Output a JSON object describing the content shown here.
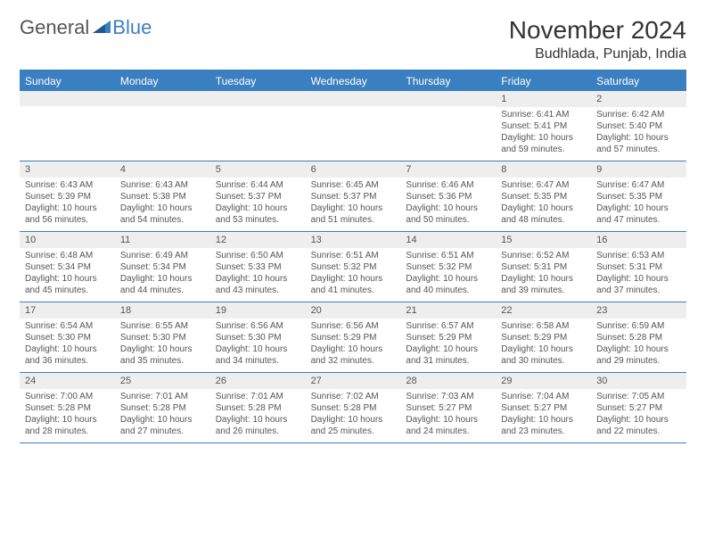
{
  "logo": {
    "general": "General",
    "blue": "Blue"
  },
  "title": "November 2024",
  "location": "Budhlada, Punjab, India",
  "colors": {
    "accent": "#3a7fbf",
    "header_text": "#ffffff",
    "daynum_bg": "#eeeeee",
    "text": "#555555",
    "background": "#ffffff"
  },
  "fonts": {
    "title_size": 28,
    "location_size": 16,
    "dow_size": 12,
    "daynum_size": 11,
    "body_size": 10
  },
  "days_of_week": [
    "Sunday",
    "Monday",
    "Tuesday",
    "Wednesday",
    "Thursday",
    "Friday",
    "Saturday"
  ],
  "weeks": [
    [
      {
        "n": "",
        "sunrise": "",
        "sunset": "",
        "daylight": ""
      },
      {
        "n": "",
        "sunrise": "",
        "sunset": "",
        "daylight": ""
      },
      {
        "n": "",
        "sunrise": "",
        "sunset": "",
        "daylight": ""
      },
      {
        "n": "",
        "sunrise": "",
        "sunset": "",
        "daylight": ""
      },
      {
        "n": "",
        "sunrise": "",
        "sunset": "",
        "daylight": ""
      },
      {
        "n": "1",
        "sunrise": "Sunrise: 6:41 AM",
        "sunset": "Sunset: 5:41 PM",
        "daylight": "Daylight: 10 hours and 59 minutes."
      },
      {
        "n": "2",
        "sunrise": "Sunrise: 6:42 AM",
        "sunset": "Sunset: 5:40 PM",
        "daylight": "Daylight: 10 hours and 57 minutes."
      }
    ],
    [
      {
        "n": "3",
        "sunrise": "Sunrise: 6:43 AM",
        "sunset": "Sunset: 5:39 PM",
        "daylight": "Daylight: 10 hours and 56 minutes."
      },
      {
        "n": "4",
        "sunrise": "Sunrise: 6:43 AM",
        "sunset": "Sunset: 5:38 PM",
        "daylight": "Daylight: 10 hours and 54 minutes."
      },
      {
        "n": "5",
        "sunrise": "Sunrise: 6:44 AM",
        "sunset": "Sunset: 5:37 PM",
        "daylight": "Daylight: 10 hours and 53 minutes."
      },
      {
        "n": "6",
        "sunrise": "Sunrise: 6:45 AM",
        "sunset": "Sunset: 5:37 PM",
        "daylight": "Daylight: 10 hours and 51 minutes."
      },
      {
        "n": "7",
        "sunrise": "Sunrise: 6:46 AM",
        "sunset": "Sunset: 5:36 PM",
        "daylight": "Daylight: 10 hours and 50 minutes."
      },
      {
        "n": "8",
        "sunrise": "Sunrise: 6:47 AM",
        "sunset": "Sunset: 5:35 PM",
        "daylight": "Daylight: 10 hours and 48 minutes."
      },
      {
        "n": "9",
        "sunrise": "Sunrise: 6:47 AM",
        "sunset": "Sunset: 5:35 PM",
        "daylight": "Daylight: 10 hours and 47 minutes."
      }
    ],
    [
      {
        "n": "10",
        "sunrise": "Sunrise: 6:48 AM",
        "sunset": "Sunset: 5:34 PM",
        "daylight": "Daylight: 10 hours and 45 minutes."
      },
      {
        "n": "11",
        "sunrise": "Sunrise: 6:49 AM",
        "sunset": "Sunset: 5:34 PM",
        "daylight": "Daylight: 10 hours and 44 minutes."
      },
      {
        "n": "12",
        "sunrise": "Sunrise: 6:50 AM",
        "sunset": "Sunset: 5:33 PM",
        "daylight": "Daylight: 10 hours and 43 minutes."
      },
      {
        "n": "13",
        "sunrise": "Sunrise: 6:51 AM",
        "sunset": "Sunset: 5:32 PM",
        "daylight": "Daylight: 10 hours and 41 minutes."
      },
      {
        "n": "14",
        "sunrise": "Sunrise: 6:51 AM",
        "sunset": "Sunset: 5:32 PM",
        "daylight": "Daylight: 10 hours and 40 minutes."
      },
      {
        "n": "15",
        "sunrise": "Sunrise: 6:52 AM",
        "sunset": "Sunset: 5:31 PM",
        "daylight": "Daylight: 10 hours and 39 minutes."
      },
      {
        "n": "16",
        "sunrise": "Sunrise: 6:53 AM",
        "sunset": "Sunset: 5:31 PM",
        "daylight": "Daylight: 10 hours and 37 minutes."
      }
    ],
    [
      {
        "n": "17",
        "sunrise": "Sunrise: 6:54 AM",
        "sunset": "Sunset: 5:30 PM",
        "daylight": "Daylight: 10 hours and 36 minutes."
      },
      {
        "n": "18",
        "sunrise": "Sunrise: 6:55 AM",
        "sunset": "Sunset: 5:30 PM",
        "daylight": "Daylight: 10 hours and 35 minutes."
      },
      {
        "n": "19",
        "sunrise": "Sunrise: 6:56 AM",
        "sunset": "Sunset: 5:30 PM",
        "daylight": "Daylight: 10 hours and 34 minutes."
      },
      {
        "n": "20",
        "sunrise": "Sunrise: 6:56 AM",
        "sunset": "Sunset: 5:29 PM",
        "daylight": "Daylight: 10 hours and 32 minutes."
      },
      {
        "n": "21",
        "sunrise": "Sunrise: 6:57 AM",
        "sunset": "Sunset: 5:29 PM",
        "daylight": "Daylight: 10 hours and 31 minutes."
      },
      {
        "n": "22",
        "sunrise": "Sunrise: 6:58 AM",
        "sunset": "Sunset: 5:29 PM",
        "daylight": "Daylight: 10 hours and 30 minutes."
      },
      {
        "n": "23",
        "sunrise": "Sunrise: 6:59 AM",
        "sunset": "Sunset: 5:28 PM",
        "daylight": "Daylight: 10 hours and 29 minutes."
      }
    ],
    [
      {
        "n": "24",
        "sunrise": "Sunrise: 7:00 AM",
        "sunset": "Sunset: 5:28 PM",
        "daylight": "Daylight: 10 hours and 28 minutes."
      },
      {
        "n": "25",
        "sunrise": "Sunrise: 7:01 AM",
        "sunset": "Sunset: 5:28 PM",
        "daylight": "Daylight: 10 hours and 27 minutes."
      },
      {
        "n": "26",
        "sunrise": "Sunrise: 7:01 AM",
        "sunset": "Sunset: 5:28 PM",
        "daylight": "Daylight: 10 hours and 26 minutes."
      },
      {
        "n": "27",
        "sunrise": "Sunrise: 7:02 AM",
        "sunset": "Sunset: 5:28 PM",
        "daylight": "Daylight: 10 hours and 25 minutes."
      },
      {
        "n": "28",
        "sunrise": "Sunrise: 7:03 AM",
        "sunset": "Sunset: 5:27 PM",
        "daylight": "Daylight: 10 hours and 24 minutes."
      },
      {
        "n": "29",
        "sunrise": "Sunrise: 7:04 AM",
        "sunset": "Sunset: 5:27 PM",
        "daylight": "Daylight: 10 hours and 23 minutes."
      },
      {
        "n": "30",
        "sunrise": "Sunrise: 7:05 AM",
        "sunset": "Sunset: 5:27 PM",
        "daylight": "Daylight: 10 hours and 22 minutes."
      }
    ]
  ]
}
